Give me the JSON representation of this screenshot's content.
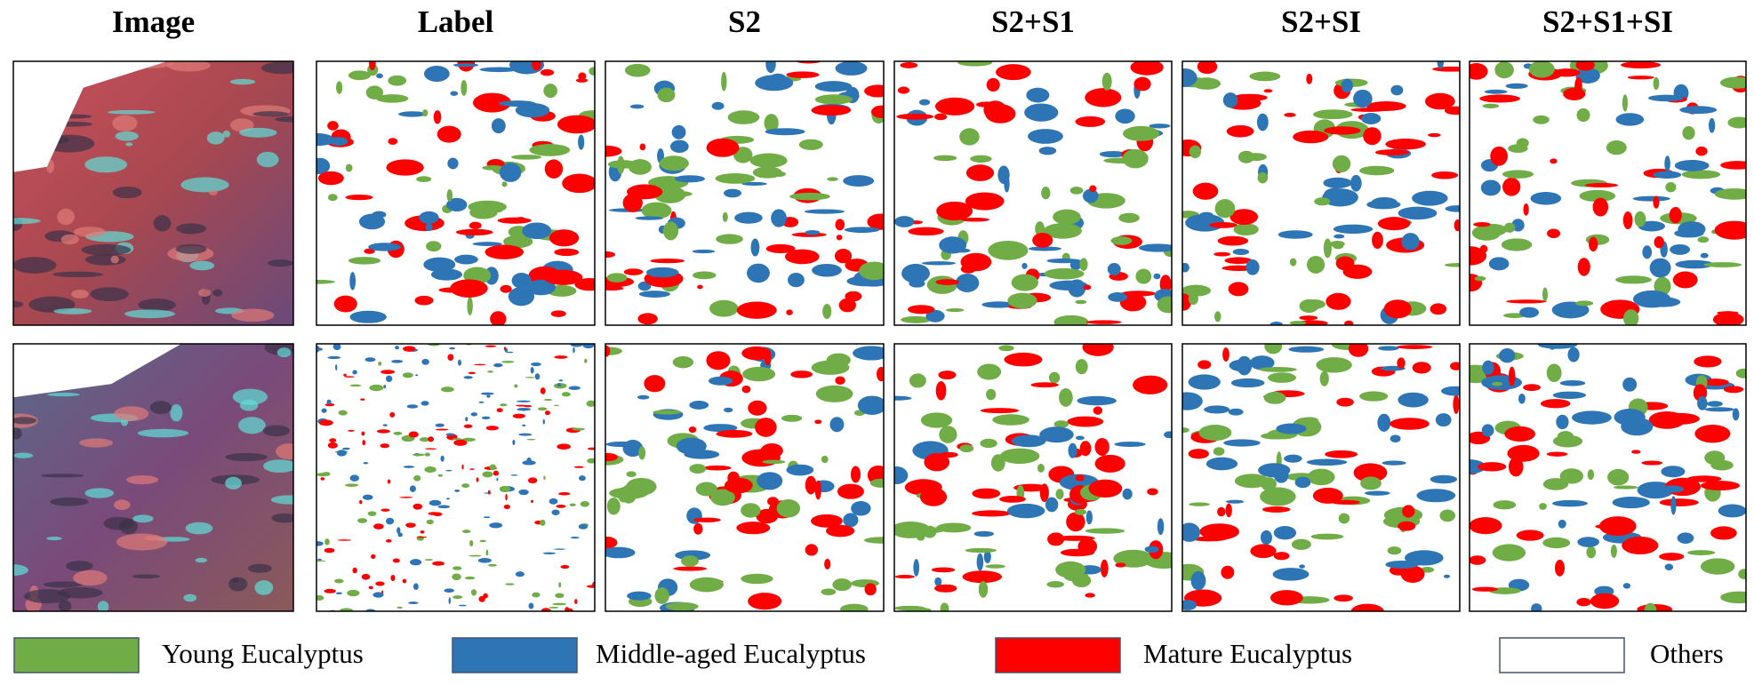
{
  "columns": [
    "Image",
    "Label",
    "S2",
    "S2+S1",
    "S2+SI",
    "S2+S1+SI"
  ],
  "legend": [
    {
      "name": "Young Eucalyptus",
      "color": "#70ad47"
    },
    {
      "name": "Middle-aged Eucalyptus",
      "color": "#2e75b6"
    },
    {
      "name": "Mature Eucalyptus",
      "color": "#ff0000"
    },
    {
      "name": "Others",
      "color": "#ffffff"
    }
  ]
}
